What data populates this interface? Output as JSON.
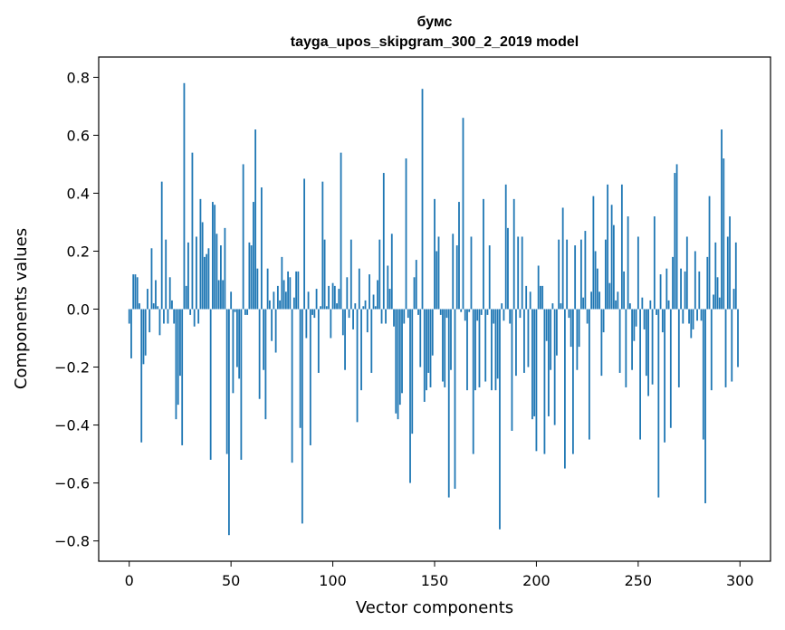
{
  "chart_data": {
    "type": "bar",
    "title": "бумс",
    "subtitle": "tayga_upos_skipgram_300_2_2019 model",
    "xlabel": "Vector components",
    "ylabel": "Components values",
    "xlim": [
      -15,
      315
    ],
    "ylim": [
      -0.87,
      0.87
    ],
    "xticks": [
      0,
      50,
      100,
      150,
      200,
      250,
      300
    ],
    "yticks": [
      -0.8,
      -0.6,
      -0.4,
      -0.2,
      0.0,
      0.2,
      0.4,
      0.6,
      0.8
    ],
    "ytick_labels": [
      "−0.8",
      "−0.6",
      "−0.4",
      "−0.2",
      "0.0",
      "0.2",
      "0.4",
      "0.6",
      "0.8"
    ],
    "bar_color": "#1f77b4",
    "x": [
      0,
      1,
      2,
      3,
      4,
      5,
      6,
      7,
      8,
      9,
      10,
      11,
      12,
      13,
      14,
      15,
      16,
      17,
      18,
      19,
      20,
      21,
      22,
      23,
      24,
      25,
      26,
      27,
      28,
      29,
      30,
      31,
      32,
      33,
      34,
      35,
      36,
      37,
      38,
      39,
      40,
      41,
      42,
      43,
      44,
      45,
      46,
      47,
      48,
      49,
      50,
      51,
      52,
      53,
      54,
      55,
      56,
      57,
      58,
      59,
      60,
      61,
      62,
      63,
      64,
      65,
      66,
      67,
      68,
      69,
      70,
      71,
      72,
      73,
      74,
      75,
      76,
      77,
      78,
      79,
      80,
      81,
      82,
      83,
      84,
      85,
      86,
      87,
      88,
      89,
      90,
      91,
      92,
      93,
      94,
      95,
      96,
      97,
      98,
      99,
      100,
      101,
      102,
      103,
      104,
      105,
      106,
      107,
      108,
      109,
      110,
      111,
      112,
      113,
      114,
      115,
      116,
      117,
      118,
      119,
      120,
      121,
      122,
      123,
      124,
      125,
      126,
      127,
      128,
      129,
      130,
      131,
      132,
      133,
      134,
      135,
      136,
      137,
      138,
      139,
      140,
      141,
      142,
      143,
      144,
      145,
      146,
      147,
      148,
      149,
      150,
      151,
      152,
      153,
      154,
      155,
      156,
      157,
      158,
      159,
      160,
      161,
      162,
      163,
      164,
      165,
      166,
      167,
      168,
      169,
      170,
      171,
      172,
      173,
      174,
      175,
      176,
      177,
      178,
      179,
      180,
      181,
      182,
      183,
      184,
      185,
      186,
      187,
      188,
      189,
      190,
      191,
      192,
      193,
      194,
      195,
      196,
      197,
      198,
      199,
      200,
      201,
      202,
      203,
      204,
      205,
      206,
      207,
      208,
      209,
      210,
      211,
      212,
      213,
      214,
      215,
      216,
      217,
      218,
      219,
      220,
      221,
      222,
      223,
      224,
      225,
      226,
      227,
      228,
      229,
      230,
      231,
      232,
      233,
      234,
      235,
      236,
      237,
      238,
      239,
      240,
      241,
      242,
      243,
      244,
      245,
      246,
      247,
      248,
      249,
      250,
      251,
      252,
      253,
      254,
      255,
      256,
      257,
      258,
      259,
      260,
      261,
      262,
      263,
      264,
      265,
      266,
      267,
      268,
      269,
      270,
      271,
      272,
      273,
      274,
      275,
      276,
      277,
      278,
      279,
      280,
      281,
      282,
      283,
      284,
      285,
      286,
      287,
      288,
      289,
      290,
      291,
      292,
      293,
      294,
      295,
      296,
      297,
      298,
      299
    ],
    "values": [
      -0.05,
      -0.17,
      0.12,
      0.12,
      0.11,
      0.02,
      -0.46,
      -0.19,
      -0.16,
      0.07,
      -0.08,
      0.21,
      0.02,
      0.1,
      0.01,
      -0.09,
      0.44,
      -0.05,
      0.24,
      -0.05,
      0.11,
      0.03,
      -0.05,
      -0.38,
      -0.33,
      -0.23,
      -0.47,
      0.78,
      0.08,
      0.23,
      -0.02,
      0.54,
      -0.06,
      0.25,
      -0.05,
      0.38,
      0.3,
      0.18,
      0.19,
      0.21,
      -0.52,
      0.37,
      0.36,
      0.26,
      0.1,
      0.22,
      0.1,
      0.28,
      -0.5,
      -0.78,
      0.06,
      -0.29,
      -0.01,
      -0.2,
      -0.24,
      -0.52,
      0.5,
      -0.02,
      -0.02,
      0.23,
      0.22,
      0.37,
      0.62,
      0.14,
      -0.31,
      0.42,
      -0.21,
      -0.38,
      0.14,
      0.03,
      -0.11,
      0.06,
      -0.15,
      0.08,
      0.03,
      0.18,
      0.1,
      0.06,
      0.13,
      0.11,
      -0.53,
      0.04,
      0.13,
      0.13,
      -0.41,
      -0.74,
      0.45,
      -0.1,
      0.06,
      -0.47,
      -0.02,
      -0.03,
      0.07,
      -0.22,
      0.01,
      0.44,
      0.24,
      0.01,
      0.08,
      -0.1,
      0.09,
      0.08,
      0.02,
      0.07,
      0.54,
      -0.09,
      -0.21,
      0.11,
      -0.03,
      0.24,
      -0.07,
      0.02,
      -0.39,
      0.14,
      -0.28,
      0.01,
      0.03,
      -0.08,
      0.12,
      -0.22,
      0.05,
      0.01,
      0.1,
      0.24,
      -0.05,
      0.47,
      -0.05,
      0.15,
      0.07,
      0.26,
      -0.06,
      -0.36,
      -0.38,
      -0.33,
      -0.29,
      -0.05,
      0.52,
      -0.03,
      -0.6,
      -0.43,
      0.11,
      0.17,
      -0.02,
      -0.2,
      0.76,
      -0.32,
      -0.28,
      -0.22,
      -0.27,
      -0.16,
      0.38,
      0.2,
      0.25,
      -0.02,
      -0.25,
      -0.27,
      -0.03,
      -0.65,
      -0.21,
      0.26,
      -0.62,
      0.22,
      0.37,
      -0.01,
      0.66,
      -0.04,
      -0.28,
      -0.01,
      0.25,
      -0.5,
      -0.28,
      -0.04,
      -0.27,
      -0.02,
      0.38,
      -0.25,
      -0.02,
      0.22,
      -0.28,
      -0.05,
      -0.28,
      -0.24,
      -0.76,
      0.02,
      -0.04,
      0.43,
      0.28,
      -0.05,
      -0.42,
      0.38,
      -0.23,
      0.25,
      -0.03,
      0.25,
      -0.22,
      0.08,
      -0.2,
      0.06,
      -0.38,
      -0.37,
      -0.49,
      0.15,
      0.08,
      0.08,
      -0.5,
      -0.11,
      -0.37,
      -0.21,
      0.02,
      -0.4,
      -0.16,
      0.24,
      0.02,
      0.35,
      -0.55,
      0.24,
      -0.03,
      -0.13,
      -0.5,
      0.22,
      -0.21,
      -0.13,
      0.24,
      0.04,
      0.27,
      -0.05,
      -0.45,
      0.06,
      0.39,
      0.2,
      0.14,
      0.06,
      -0.23,
      -0.08,
      0.24,
      0.43,
      0.09,
      0.36,
      0.29,
      0.03,
      0.06,
      -0.22,
      0.43,
      0.13,
      -0.27,
      0.32,
      0.02,
      -0.21,
      -0.11,
      -0.06,
      0.25,
      -0.45,
      0.04,
      -0.07,
      -0.23,
      -0.3,
      0.03,
      -0.26,
      0.32,
      -0.02,
      -0.65,
      0.12,
      -0.08,
      -0.46,
      0.14,
      0.03,
      -0.41,
      0.18,
      0.47,
      0.5,
      -0.27,
      0.14,
      -0.05,
      0.13,
      0.25,
      -0.05,
      -0.1,
      -0.07,
      0.2,
      -0.04,
      0.13,
      -0.04,
      -0.45,
      -0.67,
      0.18,
      0.39,
      -0.28,
      0.05,
      0.23,
      0.11,
      0.04,
      0.62,
      0.52,
      -0.27,
      0.25,
      0.32,
      -0.25,
      0.07,
      0.23,
      -0.2
    ]
  }
}
